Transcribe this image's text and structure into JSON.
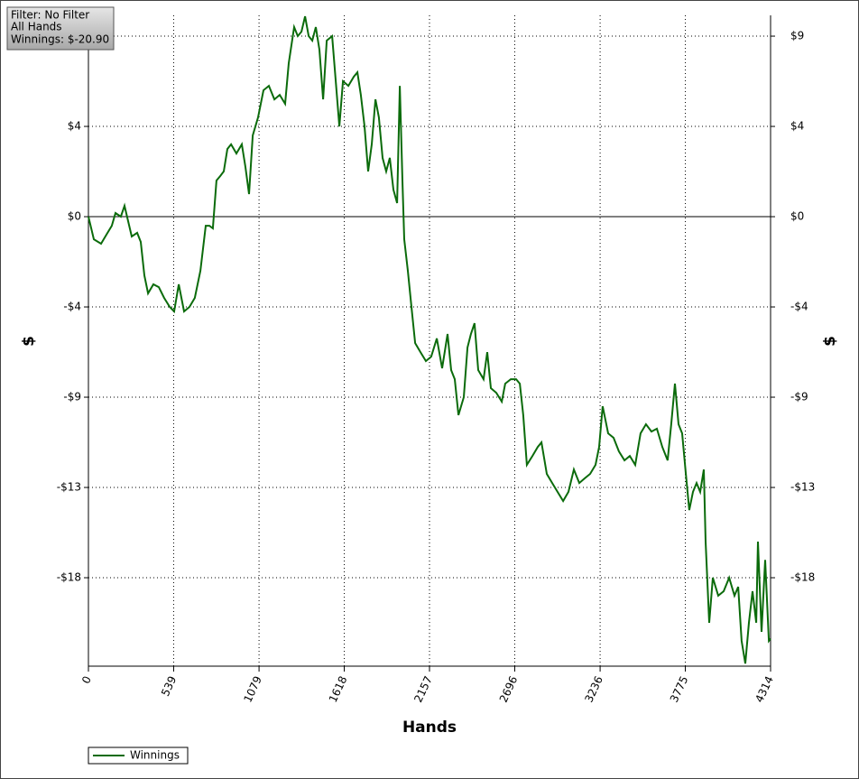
{
  "chart_data": {
    "type": "line",
    "info": [
      "Filter: No Filter",
      "All Hands",
      "Winnings: $-20.90"
    ],
    "x_label": "Hands",
    "y_label": "$",
    "y2_label": "$",
    "x": [
      0,
      34,
      80,
      114,
      148,
      171,
      205,
      228,
      251,
      274,
      308,
      331,
      354,
      377,
      411,
      445,
      479,
      514,
      542,
      571,
      605,
      639,
      673,
      708,
      742,
      765,
      787,
      810,
      833,
      856,
      879,
      902,
      936,
      970,
      993,
      1016,
      1039,
      1073,
      1107,
      1141,
      1176,
      1210,
      1244,
      1267,
      1301,
      1324,
      1347,
      1370,
      1393,
      1416,
      1438,
      1461,
      1484,
      1507,
      1541,
      1564,
      1587,
      1610,
      1644,
      1678,
      1701,
      1723,
      1746,
      1769,
      1792,
      1815,
      1837,
      1860,
      1883,
      1906,
      1929,
      1952,
      1969,
      1986,
      1997,
      2020,
      2043,
      2066,
      2100,
      2134,
      2168,
      2203,
      2237,
      2271,
      2294,
      2317,
      2340,
      2374,
      2397,
      2419,
      2442,
      2465,
      2499,
      2522,
      2545,
      2579,
      2614,
      2636,
      2671,
      2705,
      2728,
      2750,
      2773,
      2808,
      2842,
      2865,
      2899,
      2933,
      2967,
      3002,
      3036,
      3070,
      3104,
      3138,
      3173,
      3207,
      3230,
      3252,
      3287,
      3321,
      3355,
      3390,
      3424,
      3458,
      3492,
      3526,
      3561,
      3595,
      3629,
      3663,
      3686,
      3709,
      3732,
      3755,
      3778,
      3800,
      3823,
      3846,
      3869,
      3892,
      3903,
      3926,
      3949,
      3983,
      4017,
      4052,
      4086,
      4109,
      4131,
      4154,
      4177,
      4200,
      4223,
      4234,
      4257,
      4280,
      4303,
      4314
    ],
    "series": [
      {
        "name": "Winnings",
        "color": "#0b6b0b",
        "values": [
          0,
          -1.12,
          -1.34,
          -0.89,
          -0.45,
          0.18,
          0,
          0.54,
          -0.22,
          -0.98,
          -0.8,
          -1.25,
          -2.91,
          -3.8,
          -3.35,
          -3.49,
          -4.02,
          -4.47,
          -4.69,
          -3.35,
          -4.69,
          -4.47,
          -4.02,
          -2.68,
          -0.45,
          -0.45,
          -0.58,
          1.79,
          2.01,
          2.24,
          3.35,
          3.58,
          3.13,
          3.58,
          2.46,
          1.12,
          4.02,
          4.92,
          6.26,
          6.48,
          5.81,
          6.03,
          5.59,
          7.6,
          9.39,
          8.94,
          9.16,
          9.92,
          8.94,
          8.72,
          9.39,
          8.27,
          5.81,
          8.72,
          8.94,
          6.71,
          4.47,
          6.71,
          6.48,
          6.93,
          7.15,
          6.03,
          4.47,
          2.24,
          3.58,
          5.81,
          4.92,
          2.91,
          2.24,
          2.91,
          1.34,
          0.67,
          6.48,
          1.79,
          -1.12,
          -2.68,
          -4.47,
          -6.26,
          -6.71,
          -7.15,
          -6.93,
          -6.03,
          -7.51,
          -5.81,
          -7.6,
          -8.05,
          -9.83,
          -8.94,
          -6.48,
          -5.81,
          -5.28,
          -7.6,
          -8.05,
          -6.71,
          -8.49,
          -8.72,
          -9.16,
          -8.27,
          -8.05,
          -8.05,
          -8.27,
          -9.83,
          -12.29,
          -11.85,
          -11.4,
          -11.18,
          -12.74,
          -13.19,
          -13.63,
          -14.08,
          -13.63,
          -12.52,
          -13.19,
          -12.96,
          -12.74,
          -12.29,
          -11.4,
          -9.39,
          -10.73,
          -10.95,
          -11.62,
          -12.07,
          -11.85,
          -12.29,
          -10.73,
          -10.28,
          -10.64,
          -10.5,
          -11.4,
          -12.07,
          -10.28,
          -8.27,
          -10.28,
          -10.73,
          -12.74,
          -14.53,
          -13.63,
          -13.19,
          -13.63,
          -12.52,
          -16.09,
          -20.11,
          -17.88,
          -18.77,
          -18.55,
          -17.88,
          -18.77,
          -18.33,
          -21.01,
          -22.13,
          -20.11,
          -18.55,
          -20.11,
          -16.09,
          -20.56,
          -17.0,
          -21.01,
          -20.9
        ]
      }
    ],
    "xlim": [
      0,
      4314
    ],
    "xticks": [
      0,
      539,
      1079,
      1618,
      2157,
      2696,
      3236,
      3775,
      4314
    ],
    "ylim": [
      -22.26,
      9.97
    ],
    "yticks": [
      {
        "value": 8.94,
        "label": "$9"
      },
      {
        "value": 4.47,
        "label": "$4"
      },
      {
        "value": 0,
        "label": "$0"
      },
      {
        "value": -4.47,
        "label": "-$4"
      },
      {
        "value": -8.94,
        "label": "-$9"
      },
      {
        "value": -13.41,
        "label": "-$13"
      },
      {
        "value": -17.88,
        "label": "-$18"
      }
    ],
    "y2lim": [
      -22.26,
      9.97
    ],
    "y2ticks": [
      {
        "value": 8.94,
        "label": "$9"
      },
      {
        "value": 4.47,
        "label": "$4"
      },
      {
        "value": 0,
        "label": "$0"
      },
      {
        "value": -4.47,
        "label": "-$4"
      },
      {
        "value": -8.94,
        "label": "-$9"
      },
      {
        "value": -13.41,
        "label": "-$13"
      },
      {
        "value": -17.88,
        "label": "-$18"
      }
    ],
    "grid": true
  }
}
